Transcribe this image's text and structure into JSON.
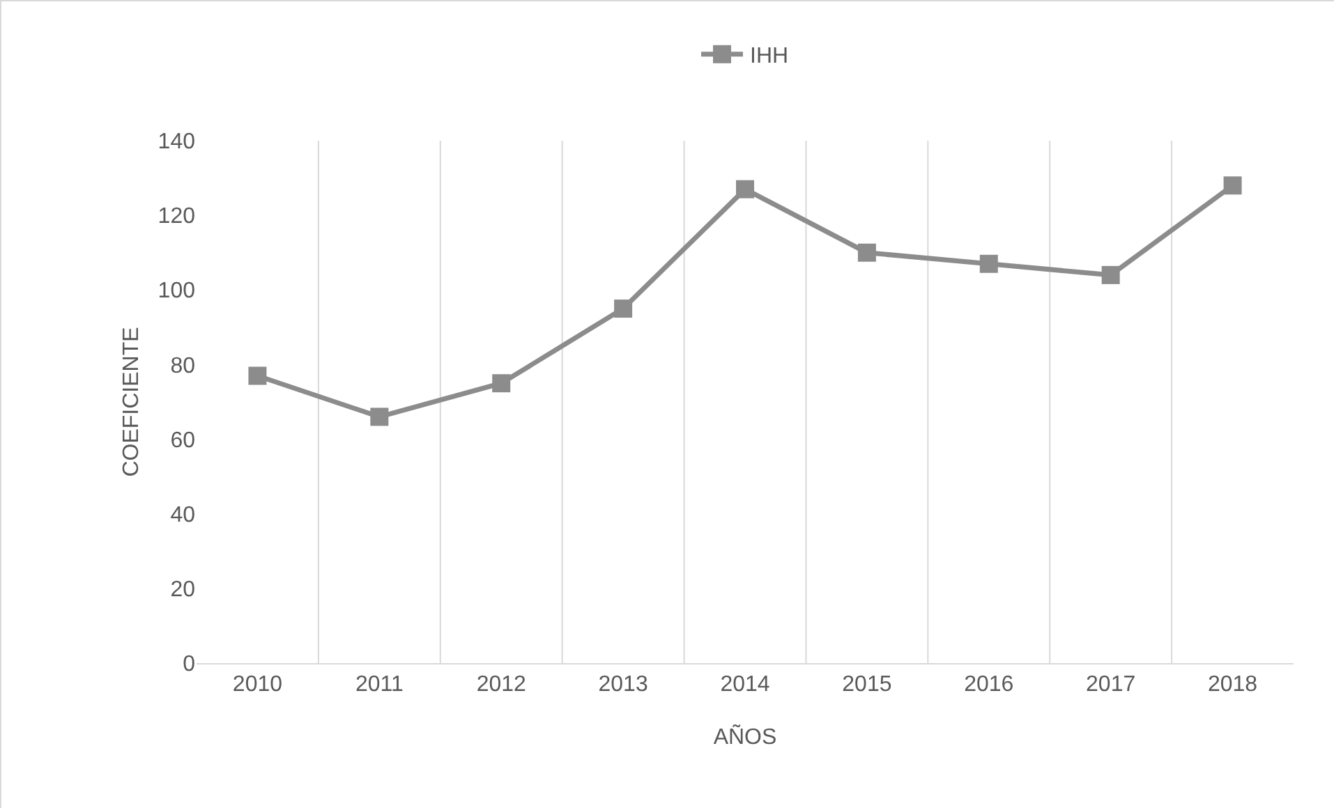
{
  "chart_data": {
    "type": "line",
    "xlabel": "AÑOS",
    "ylabel": "COEFICIENTE",
    "categories": [
      "2010",
      "2011",
      "2012",
      "2013",
      "2014",
      "2015",
      "2016",
      "2017",
      "2018"
    ],
    "series": [
      {
        "name": "IHH",
        "color": "#8c8c8c",
        "values": [
          77,
          66,
          75,
          95,
          127,
          110,
          107,
          104,
          128
        ]
      }
    ],
    "ylim": [
      0,
      140
    ],
    "yticks": [
      0,
      20,
      40,
      60,
      80,
      100,
      120,
      140
    ],
    "grid": "x",
    "legend": "top",
    "marker": "square",
    "line_style": "solid"
  }
}
